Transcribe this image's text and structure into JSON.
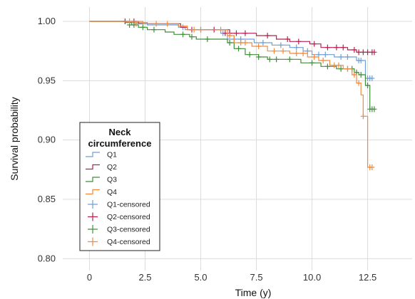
{
  "chart_data": {
    "type": "line",
    "title": "",
    "xlabel": "Time (y)",
    "ylabel": "Survival probability",
    "xlim": [
      -1.2,
      14.5
    ],
    "ylim": [
      0.79,
      1.012
    ],
    "x_ticks": [
      0,
      2.5,
      5,
      7.5,
      10,
      12.5
    ],
    "x_tick_labels": [
      "0",
      "2.5",
      "5.0",
      "7.5",
      "10.0",
      "12.5"
    ],
    "y_ticks": [
      0.8,
      0.85,
      0.9,
      0.95,
      1.0
    ],
    "y_tick_labels": [
      "0.80",
      "0.85",
      "0.90",
      "0.95",
      "1.00"
    ],
    "grid": true,
    "legend": {
      "title_lines": [
        "Neck",
        "circumference"
      ],
      "placement": "bottom-left"
    },
    "series": [
      {
        "name": "Q1",
        "color": "#6f9fd8",
        "steps": [
          [
            0,
            1.0
          ],
          [
            1.8,
            0.999
          ],
          [
            2.6,
            0.997
          ],
          [
            4.0,
            0.995
          ],
          [
            4.3,
            0.993
          ],
          [
            5.9,
            0.99
          ],
          [
            6.2,
            0.985
          ],
          [
            7.4,
            0.982
          ],
          [
            8.2,
            0.98
          ],
          [
            9.0,
            0.978
          ],
          [
            9.6,
            0.975
          ],
          [
            10.0,
            0.972
          ],
          [
            11.0,
            0.97
          ],
          [
            12.0,
            0.967
          ],
          [
            12.4,
            0.952
          ],
          [
            12.7,
            0.952
          ]
        ],
        "censored": [
          [
            4.2,
            0.995
          ],
          [
            5.0,
            0.993
          ],
          [
            6.0,
            0.99
          ],
          [
            6.5,
            0.985
          ],
          [
            6.8,
            0.985
          ],
          [
            7.8,
            0.982
          ],
          [
            8.6,
            0.98
          ],
          [
            9.3,
            0.978
          ],
          [
            9.8,
            0.975
          ],
          [
            10.3,
            0.972
          ],
          [
            10.6,
            0.972
          ],
          [
            11.3,
            0.97
          ],
          [
            11.6,
            0.97
          ],
          [
            12.1,
            0.967
          ],
          [
            12.2,
            0.967
          ],
          [
            12.5,
            0.952
          ],
          [
            12.6,
            0.952
          ],
          [
            12.7,
            0.952
          ]
        ]
      },
      {
        "name": "Q2",
        "color": "#b8204e",
        "steps": [
          [
            0,
            1.0
          ],
          [
            2.2,
            0.998
          ],
          [
            4.1,
            0.995
          ],
          [
            4.4,
            0.993
          ],
          [
            6.3,
            0.99
          ],
          [
            7.5,
            0.988
          ],
          [
            8.4,
            0.985
          ],
          [
            9.0,
            0.983
          ],
          [
            9.9,
            0.981
          ],
          [
            10.4,
            0.978
          ],
          [
            11.6,
            0.976
          ],
          [
            12.0,
            0.974
          ],
          [
            12.8,
            0.974
          ]
        ],
        "censored": [
          [
            1.6,
            1.0
          ],
          [
            2.0,
            1.0
          ],
          [
            4.6,
            0.993
          ],
          [
            5.6,
            0.993
          ],
          [
            6.1,
            0.99
          ],
          [
            6.3,
            0.99
          ],
          [
            6.6,
            0.99
          ],
          [
            7.0,
            0.99
          ],
          [
            8.0,
            0.988
          ],
          [
            8.9,
            0.985
          ],
          [
            9.4,
            0.983
          ],
          [
            10.1,
            0.981
          ],
          [
            10.7,
            0.978
          ],
          [
            11.1,
            0.978
          ],
          [
            11.4,
            0.978
          ],
          [
            11.9,
            0.976
          ],
          [
            12.1,
            0.974
          ],
          [
            12.3,
            0.974
          ],
          [
            12.5,
            0.974
          ],
          [
            12.7,
            0.974
          ],
          [
            12.8,
            0.974
          ]
        ]
      },
      {
        "name": "Q3",
        "color": "#3f8f3a",
        "steps": [
          [
            0,
            1.0
          ],
          [
            1.6,
            0.999
          ],
          [
            1.9,
            0.997
          ],
          [
            2.2,
            0.995
          ],
          [
            2.6,
            0.993
          ],
          [
            3.4,
            0.991
          ],
          [
            3.8,
            0.989
          ],
          [
            4.5,
            0.987
          ],
          [
            4.8,
            0.985
          ],
          [
            6.2,
            0.982
          ],
          [
            6.5,
            0.977
          ],
          [
            7.0,
            0.972
          ],
          [
            7.6,
            0.97
          ],
          [
            8.0,
            0.968
          ],
          [
            9.5,
            0.965
          ],
          [
            10.4,
            0.962
          ],
          [
            11.1,
            0.96
          ],
          [
            11.9,
            0.957
          ],
          [
            12.1,
            0.955
          ],
          [
            12.4,
            0.946
          ],
          [
            12.6,
            0.926
          ],
          [
            12.8,
            0.926
          ]
        ],
        "censored": [
          [
            1.8,
            0.997
          ],
          [
            2.0,
            0.997
          ],
          [
            2.4,
            0.995
          ],
          [
            2.9,
            0.993
          ],
          [
            4.2,
            0.989
          ],
          [
            4.6,
            0.987
          ],
          [
            5.3,
            0.985
          ],
          [
            6.3,
            0.982
          ],
          [
            6.7,
            0.977
          ],
          [
            7.2,
            0.972
          ],
          [
            7.6,
            0.97
          ],
          [
            8.1,
            0.968
          ],
          [
            8.4,
            0.968
          ],
          [
            9.0,
            0.968
          ],
          [
            10.0,
            0.965
          ],
          [
            10.7,
            0.962
          ],
          [
            11.3,
            0.96
          ],
          [
            11.6,
            0.96
          ],
          [
            11.8,
            0.96
          ],
          [
            12.0,
            0.957
          ],
          [
            12.2,
            0.955
          ],
          [
            12.5,
            0.946
          ],
          [
            12.6,
            0.926
          ],
          [
            12.7,
            0.926
          ],
          [
            12.8,
            0.926
          ]
        ]
      },
      {
        "name": "Q4",
        "color": "#f28a3c",
        "steps": [
          [
            0,
            1.0
          ],
          [
            2.4,
            0.998
          ],
          [
            4.0,
            0.996
          ],
          [
            4.4,
            0.993
          ],
          [
            6.2,
            0.988
          ],
          [
            6.5,
            0.982
          ],
          [
            7.3,
            0.979
          ],
          [
            8.0,
            0.975
          ],
          [
            9.0,
            0.973
          ],
          [
            9.8,
            0.97
          ],
          [
            10.3,
            0.967
          ],
          [
            10.8,
            0.963
          ],
          [
            11.4,
            0.96
          ],
          [
            11.8,
            0.955
          ],
          [
            12.0,
            0.948
          ],
          [
            12.2,
            0.938
          ],
          [
            12.3,
            0.92
          ],
          [
            12.5,
            0.877
          ],
          [
            12.7,
            0.877
          ]
        ],
        "censored": [
          [
            1.8,
            1.0
          ],
          [
            2.1,
            0.998
          ],
          [
            3.0,
            0.998
          ],
          [
            3.5,
            0.998
          ],
          [
            4.7,
            0.993
          ],
          [
            5.0,
            0.993
          ],
          [
            5.9,
            0.993
          ],
          [
            6.3,
            0.988
          ],
          [
            6.8,
            0.982
          ],
          [
            7.0,
            0.982
          ],
          [
            7.6,
            0.979
          ],
          [
            8.3,
            0.975
          ],
          [
            8.7,
            0.975
          ],
          [
            9.3,
            0.973
          ],
          [
            9.6,
            0.973
          ],
          [
            10.1,
            0.97
          ],
          [
            10.5,
            0.967
          ],
          [
            11.0,
            0.963
          ],
          [
            11.2,
            0.963
          ],
          [
            11.6,
            0.96
          ],
          [
            11.9,
            0.955
          ],
          [
            12.1,
            0.948
          ],
          [
            12.3,
            0.92
          ],
          [
            12.6,
            0.877
          ],
          [
            12.7,
            0.877
          ]
        ]
      }
    ],
    "legend_entries": [
      {
        "label": "Q1",
        "kind": "step",
        "color": "#6f9fd8"
      },
      {
        "label": "Q2",
        "kind": "step",
        "color": "#b8204e"
      },
      {
        "label": "Q3",
        "kind": "step",
        "color": "#3f8f3a"
      },
      {
        "label": "Q4",
        "kind": "step",
        "color": "#f28a3c"
      },
      {
        "label": "Q1-censored",
        "kind": "cross",
        "color": "#6f9fd8"
      },
      {
        "label": "Q2-censored",
        "kind": "cross",
        "color": "#b8204e"
      },
      {
        "label": "Q3-censored",
        "kind": "cross",
        "color": "#3f8f3a"
      },
      {
        "label": "Q4-censored",
        "kind": "cross",
        "color": "#f28a3c"
      }
    ]
  }
}
